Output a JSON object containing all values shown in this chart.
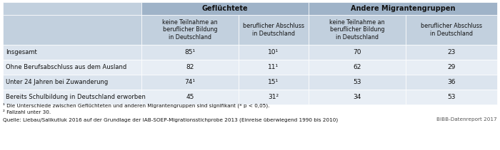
{
  "header_group1": "Geflüchtete",
  "header_group2": "Andere Migrantengruppen",
  "col_headers": [
    "keine Teilnahme an\nberuflicher Bildung\nin Deutschland",
    "beruflicher Abschluss\nin Deutschland",
    "keine Teilnahme an\nberuflicher Bildung\nin Deutschland",
    "beruflicher Abschluss\nin Deutschland"
  ],
  "row_labels": [
    "Insgesamt",
    "Ohne Berufsabschluss aus dem Ausland",
    "Unter 24 Jahren bei Zuwanderung",
    "Bereits Schulbildung in Deutschland erworben"
  ],
  "data": [
    [
      "85¹",
      "10¹",
      "70",
      "23"
    ],
    [
      "82",
      "11¹",
      "62",
      "29"
    ],
    [
      "74¹",
      "15¹",
      "53",
      "36"
    ],
    [
      "45",
      "31²",
      "34",
      "53"
    ]
  ],
  "footnote1": "¹ Die Unterschiede zwischen Geflüchteten und anderen Migrantengruppen sind signifikant (* p < 0,05).",
  "footnote2": "² Fallzahl unter 30.",
  "source": "Quelle: Liebau/Salikutluk 2016 auf der Grundlage der IAB-SOEP-Migrationsstichprobe 2013 (Einreise überwiegend 1990 bis 2010)",
  "bibb": "BIBB-Datenreport 2017",
  "header_bg": "#9fb3c8",
  "subheader_bg": "#c2d0de",
  "row_bg_odd": "#dbe4ee",
  "row_bg_even": "#e8eef5",
  "white": "#ffffff"
}
